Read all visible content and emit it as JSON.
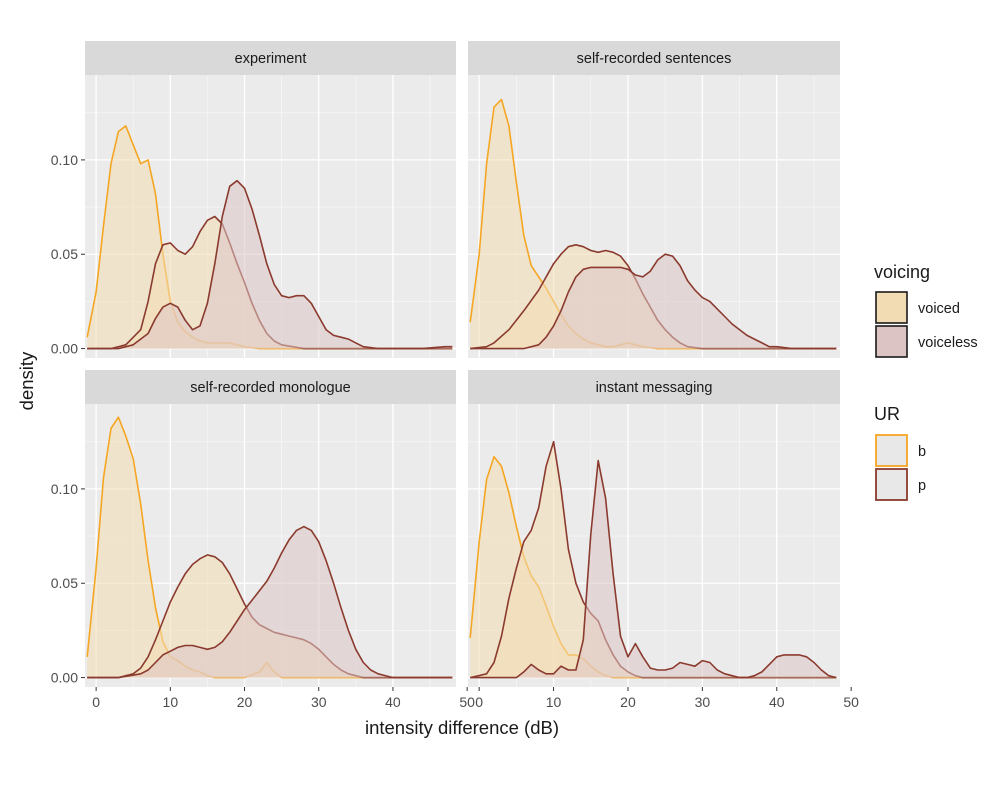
{
  "chart_data": {
    "type": "area",
    "subtype": "faceted density",
    "xlabel": "intensity difference (dB)",
    "ylabel": "density",
    "xlim": [
      -1.5,
      48.5
    ],
    "ylim": [
      -0.005,
      0.145
    ],
    "x_ticks": [
      0,
      10,
      20,
      30,
      40,
      50
    ],
    "y_ticks": [
      0.0,
      0.05,
      0.1
    ],
    "y_tick_labels": [
      "0.00",
      "0.05",
      "0.10"
    ],
    "legend": {
      "position": "right",
      "voicing": {
        "title": "voicing",
        "entries": [
          {
            "label": "voiced",
            "fill": "#f2dcb3"
          },
          {
            "label": "voiceless",
            "fill": "#dcc4c4"
          }
        ]
      },
      "ur": {
        "title": "UR",
        "entries": [
          {
            "label": "b",
            "color": "#f5a623"
          },
          {
            "label": "p",
            "color": "#8b3a2e"
          }
        ]
      }
    },
    "facets": [
      {
        "title": "experiment",
        "series": [
          {
            "voicing": "voiced",
            "ur": "b",
            "x": [
              -1.2,
              0,
              1,
              2,
              3,
              4,
              5,
              6,
              7,
              8,
              9,
              10,
              11,
              12,
              13,
              14,
              15,
              16,
              17,
              18,
              19,
              20,
              22,
              25,
              48
            ],
            "y": [
              0.006,
              0.03,
              0.065,
              0.098,
              0.115,
              0.118,
              0.108,
              0.098,
              0.1,
              0.082,
              0.05,
              0.025,
              0.014,
              0.009,
              0.006,
              0.004,
              0.003,
              0.003,
              0.003,
              0.003,
              0.002,
              0.001,
              0.0,
              0.0,
              0.0
            ]
          },
          {
            "voicing": "voiced",
            "ur": "p",
            "x": [
              -1.2,
              2,
              4,
              6,
              7,
              8,
              9,
              10,
              11,
              12,
              13,
              14,
              15,
              16,
              17,
              18,
              19,
              20,
              21,
              22,
              23,
              24,
              25,
              28,
              30,
              48
            ],
            "y": [
              0.0,
              0.0,
              0.002,
              0.01,
              0.025,
              0.045,
              0.055,
              0.056,
              0.052,
              0.05,
              0.054,
              0.062,
              0.068,
              0.07,
              0.066,
              0.056,
              0.045,
              0.035,
              0.024,
              0.015,
              0.008,
              0.004,
              0.002,
              0.0,
              0.0,
              0.0
            ]
          },
          {
            "voicing": "voiceless",
            "ur": "p",
            "x": [
              -1.2,
              3,
              5,
              7,
              8,
              9,
              10,
              11,
              12,
              13,
              14,
              15,
              16,
              17,
              18,
              19,
              20,
              21,
              22,
              23,
              24,
              25,
              26,
              27,
              28,
              29,
              30,
              31,
              32,
              33,
              34,
              35,
              36,
              38,
              40,
              44,
              47,
              48
            ],
            "y": [
              0.0,
              0.0,
              0.002,
              0.008,
              0.016,
              0.022,
              0.024,
              0.022,
              0.015,
              0.01,
              0.012,
              0.024,
              0.045,
              0.07,
              0.086,
              0.089,
              0.085,
              0.074,
              0.06,
              0.045,
              0.034,
              0.028,
              0.027,
              0.028,
              0.028,
              0.024,
              0.017,
              0.01,
              0.007,
              0.006,
              0.005,
              0.003,
              0.001,
              0.0,
              0.0,
              0.0,
              0.001,
              0.001
            ]
          }
        ]
      },
      {
        "title": "self-recorded sentences",
        "series": [
          {
            "voicing": "voiced",
            "ur": "b",
            "x": [
              -1.2,
              0,
              1,
              2,
              3,
              4,
              5,
              6,
              7,
              8,
              9,
              10,
              11,
              12,
              13,
              14,
              15,
              16,
              17,
              18,
              19,
              20,
              21,
              22,
              24,
              26,
              48
            ],
            "y": [
              0.014,
              0.05,
              0.098,
              0.128,
              0.132,
              0.118,
              0.088,
              0.06,
              0.044,
              0.038,
              0.032,
              0.025,
              0.018,
              0.012,
              0.008,
              0.005,
              0.003,
              0.002,
              0.001,
              0.001,
              0.002,
              0.003,
              0.002,
              0.001,
              0.0,
              0.0,
              0.0
            ]
          },
          {
            "voicing": "voiced",
            "ur": "p",
            "x": [
              -1.2,
              1,
              2,
              4,
              6,
              8,
              10,
              11,
              12,
              13,
              14,
              15,
              16,
              17,
              18,
              19,
              20,
              21,
              22,
              23,
              24,
              25,
              26,
              27,
              28,
              30,
              48
            ],
            "y": [
              0.0,
              0.001,
              0.003,
              0.01,
              0.02,
              0.031,
              0.045,
              0.05,
              0.054,
              0.055,
              0.054,
              0.052,
              0.051,
              0.052,
              0.051,
              0.049,
              0.044,
              0.037,
              0.029,
              0.022,
              0.015,
              0.01,
              0.006,
              0.003,
              0.001,
              0.0,
              0.0
            ]
          },
          {
            "voicing": "voiceless",
            "ur": "p",
            "x": [
              -1.2,
              6,
              8,
              9,
              10,
              11,
              12,
              13,
              14,
              15,
              16,
              17,
              18,
              19,
              20,
              21,
              22,
              23,
              24,
              25,
              26,
              27,
              28,
              29,
              30,
              31,
              32,
              33,
              34,
              35,
              36,
              37,
              38,
              39,
              40,
              42,
              44,
              46,
              48
            ],
            "y": [
              0.0,
              0.0,
              0.002,
              0.006,
              0.012,
              0.02,
              0.03,
              0.038,
              0.042,
              0.043,
              0.043,
              0.043,
              0.043,
              0.043,
              0.042,
              0.039,
              0.038,
              0.041,
              0.047,
              0.05,
              0.049,
              0.044,
              0.036,
              0.031,
              0.027,
              0.025,
              0.021,
              0.017,
              0.013,
              0.01,
              0.007,
              0.005,
              0.003,
              0.001,
              0.001,
              0.0,
              0.0,
              0.0,
              0.0
            ]
          }
        ]
      },
      {
        "title": "self-recorded monologue",
        "series": [
          {
            "voicing": "voiced",
            "ur": "b",
            "x": [
              -1.2,
              0,
              1,
              2,
              3,
              4,
              5,
              6,
              7,
              8,
              9,
              10,
              11,
              12,
              13,
              14,
              15,
              16,
              17,
              18,
              20,
              22,
              23,
              24,
              25,
              26,
              30,
              48
            ],
            "y": [
              0.011,
              0.058,
              0.106,
              0.132,
              0.138,
              0.128,
              0.116,
              0.092,
              0.062,
              0.037,
              0.019,
              0.011,
              0.009,
              0.006,
              0.004,
              0.003,
              0.001,
              0.0,
              0.0,
              0.0,
              0.0,
              0.003,
              0.008,
              0.003,
              0.0,
              0.0,
              0.0,
              0.0
            ]
          },
          {
            "voicing": "voiced",
            "ur": "p",
            "x": [
              -1.2,
              3,
              5,
              6,
              7,
              8,
              9,
              10,
              11,
              12,
              13,
              14,
              15,
              16,
              17,
              18,
              19,
              20,
              21,
              22,
              23,
              24,
              25,
              26,
              27,
              28,
              29,
              30,
              31,
              32,
              33,
              34,
              35,
              36,
              38,
              48
            ],
            "y": [
              0.0,
              0.0,
              0.002,
              0.005,
              0.011,
              0.02,
              0.03,
              0.04,
              0.048,
              0.055,
              0.06,
              0.063,
              0.065,
              0.064,
              0.061,
              0.055,
              0.047,
              0.039,
              0.032,
              0.028,
              0.026,
              0.024,
              0.023,
              0.022,
              0.021,
              0.02,
              0.018,
              0.015,
              0.011,
              0.007,
              0.004,
              0.002,
              0.001,
              0.0,
              0.0,
              0.0
            ]
          },
          {
            "voicing": "voiceless",
            "ur": "p",
            "x": [
              -1.2,
              3,
              6,
              7,
              8,
              9,
              10,
              11,
              12,
              13,
              14,
              15,
              16,
              17,
              18,
              19,
              20,
              21,
              22,
              23,
              24,
              25,
              26,
              27,
              28,
              29,
              30,
              31,
              32,
              33,
              34,
              35,
              36,
              37,
              38,
              40,
              48
            ],
            "y": [
              0.0,
              0.0,
              0.002,
              0.004,
              0.008,
              0.012,
              0.014,
              0.016,
              0.017,
              0.017,
              0.016,
              0.015,
              0.016,
              0.019,
              0.024,
              0.03,
              0.036,
              0.041,
              0.046,
              0.051,
              0.058,
              0.066,
              0.073,
              0.078,
              0.08,
              0.078,
              0.072,
              0.062,
              0.05,
              0.037,
              0.025,
              0.015,
              0.008,
              0.004,
              0.002,
              0.0,
              0.0
            ]
          }
        ]
      },
      {
        "title": "instant messaging",
        "series": [
          {
            "voicing": "voiced",
            "ur": "b",
            "x": [
              -1.2,
              0,
              1,
              2,
              3,
              4,
              5,
              6,
              7,
              8,
              9,
              10,
              11,
              12,
              13,
              14,
              15,
              16,
              17,
              18,
              20,
              22,
              48
            ],
            "y": [
              0.021,
              0.072,
              0.105,
              0.117,
              0.112,
              0.098,
              0.08,
              0.064,
              0.054,
              0.048,
              0.038,
              0.027,
              0.018,
              0.012,
              0.012,
              0.01,
              0.006,
              0.003,
              0.001,
              0.0,
              0.0,
              0.0,
              0.0
            ]
          },
          {
            "voicing": "voiced",
            "ur": "p",
            "x": [
              -1.2,
              1,
              2,
              3,
              4,
              5,
              6,
              7,
              8,
              9,
              10,
              11,
              12,
              13,
              14,
              15,
              16,
              17,
              18,
              19,
              20,
              21,
              22,
              24,
              48
            ],
            "y": [
              0.0,
              0.002,
              0.008,
              0.022,
              0.042,
              0.058,
              0.072,
              0.078,
              0.09,
              0.112,
              0.125,
              0.1,
              0.068,
              0.05,
              0.04,
              0.034,
              0.03,
              0.02,
              0.012,
              0.006,
              0.003,
              0.001,
              0.0,
              0.0,
              0.0
            ]
          },
          {
            "voicing": "voiceless",
            "ur": "p",
            "x": [
              -1.2,
              5,
              6,
              7,
              8,
              9,
              10,
              11,
              12,
              13,
              14,
              15,
              16,
              17,
              18,
              19,
              20,
              21,
              22,
              23,
              24,
              25,
              26,
              27,
              28,
              29,
              30,
              31,
              32,
              33,
              34,
              35,
              36,
              37,
              38,
              39,
              40,
              41,
              42,
              43,
              44,
              45,
              46,
              47,
              48
            ],
            "y": [
              0.0,
              0.0,
              0.003,
              0.007,
              0.004,
              0.002,
              0.002,
              0.006,
              0.004,
              0.004,
              0.02,
              0.076,
              0.115,
              0.095,
              0.055,
              0.022,
              0.011,
              0.018,
              0.011,
              0.005,
              0.004,
              0.004,
              0.005,
              0.008,
              0.007,
              0.006,
              0.009,
              0.008,
              0.004,
              0.002,
              0.001,
              0.0,
              0.0,
              0.001,
              0.003,
              0.007,
              0.011,
              0.012,
              0.012,
              0.012,
              0.011,
              0.008,
              0.004,
              0.001,
              0.0
            ]
          }
        ]
      }
    ]
  }
}
